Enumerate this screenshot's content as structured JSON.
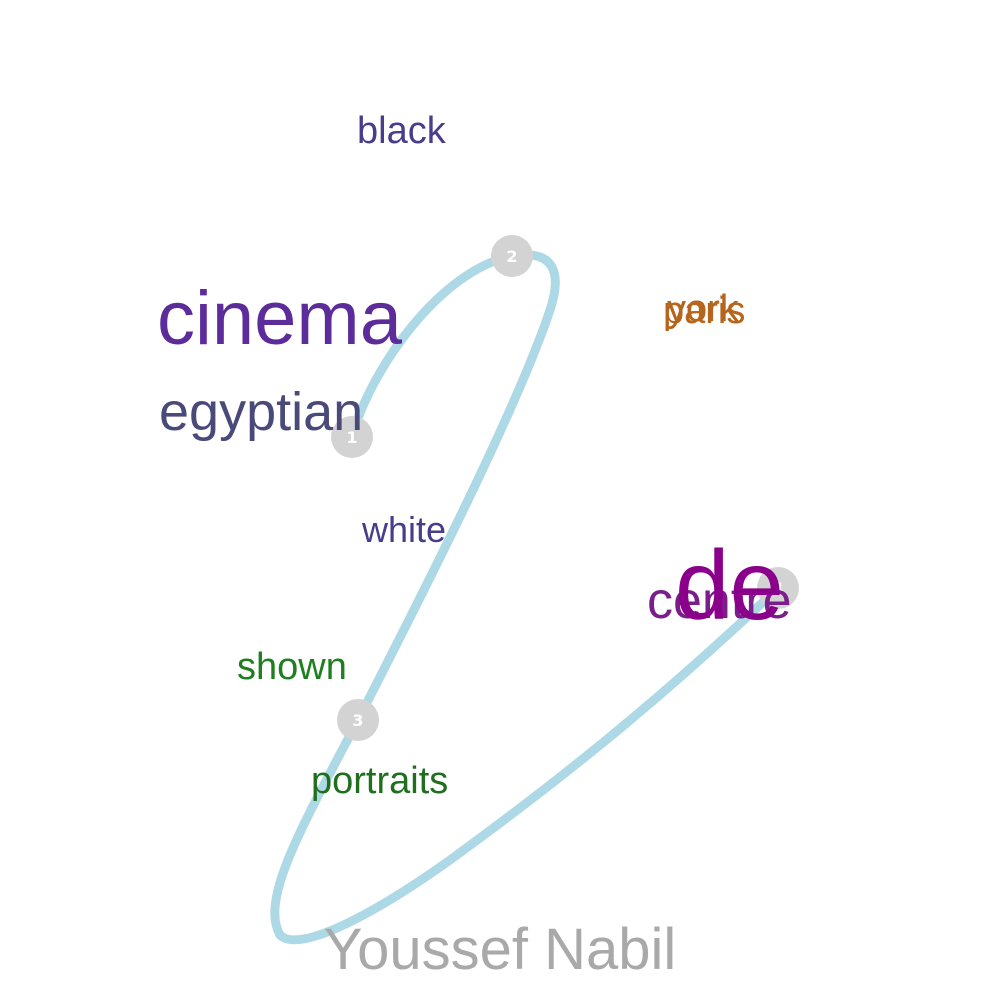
{
  "words": [
    {
      "id": "black",
      "text": "black",
      "color": "#483d8b"
    },
    {
      "id": "cinema",
      "text": "cinema",
      "color": "#5b2c9a"
    },
    {
      "id": "egyptian",
      "text": "egyptian",
      "color": "#4a4a7a"
    },
    {
      "id": "white",
      "text": "white",
      "color": "#483d8b"
    },
    {
      "id": "shown",
      "text": "shown",
      "color": "#1f7f1f"
    },
    {
      "id": "portraits",
      "text": "portraits",
      "color": "#1f6f1f"
    },
    {
      "id": "paris",
      "text": "paris",
      "color": "#b5651d"
    },
    {
      "id": "york",
      "text": "york",
      "color": "#b5651d"
    },
    {
      "id": "centre",
      "text": "centre",
      "color": "#7a1f8a"
    },
    {
      "id": "de",
      "text": "de",
      "color": "#8b008b"
    }
  ],
  "markers": [
    {
      "id": "marker-1",
      "label": "1"
    },
    {
      "id": "marker-2",
      "label": "2"
    },
    {
      "id": "marker-3",
      "label": "3"
    },
    {
      "id": "marker-4",
      "label": "4"
    }
  ],
  "path_color": "#add8e6",
  "marker_color": "#d3d3d3",
  "footer": {
    "text": "Youssef Nabil",
    "color": "#a9a9a9"
  }
}
